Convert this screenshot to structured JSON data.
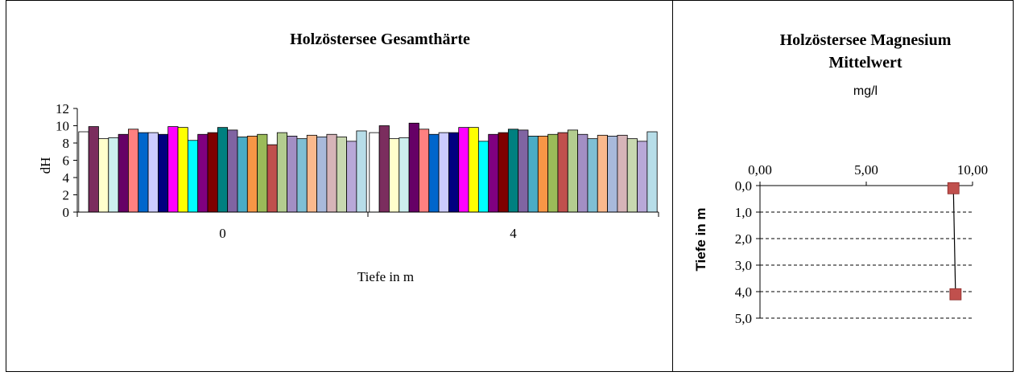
{
  "chart_data": [
    {
      "type": "bar",
      "title": "Holzöstersee Gesamthärte",
      "xlabel": "Tiefe in m",
      "ylabel": "dH",
      "ylim": [
        0,
        12
      ],
      "yticks": [
        "0",
        "2",
        "4",
        "6",
        "8",
        "10",
        "12"
      ],
      "categories": [
        "0",
        "4"
      ],
      "grid": false,
      "legend": "none",
      "series_colors": [
        "#ffffff",
        "#7b2d5e",
        "#ffffcc",
        "#cceeee",
        "#660066",
        "#ff8080",
        "#0066cc",
        "#ccccff",
        "#000080",
        "#ff00ff",
        "#ffff00",
        "#00ffff",
        "#800080",
        "#800000",
        "#008080",
        "#8064a2",
        "#4bacc6",
        "#f79646",
        "#9bbb59",
        "#c0504d",
        "#b3cc8f",
        "#a38fc4",
        "#7fbfd4",
        "#fab98d",
        "#a8b9db",
        "#d6b4b8",
        "#c8d8b0",
        "#b8a8d8",
        "#b7dde8"
      ],
      "series": [
        {
          "values": [
            9.3,
            9.2
          ]
        },
        {
          "values": [
            9.9,
            10.0
          ]
        },
        {
          "values": [
            8.5,
            8.5
          ]
        },
        {
          "values": [
            8.6,
            8.6
          ]
        },
        {
          "values": [
            9.0,
            10.3
          ]
        },
        {
          "values": [
            9.6,
            9.6
          ]
        },
        {
          "values": [
            9.2,
            9.0
          ]
        },
        {
          "values": [
            9.2,
            9.2
          ]
        },
        {
          "values": [
            9.0,
            9.2
          ]
        },
        {
          "values": [
            9.9,
            9.8
          ]
        },
        {
          "values": [
            9.8,
            9.8
          ]
        },
        {
          "values": [
            8.3,
            8.2
          ]
        },
        {
          "values": [
            9.0,
            9.0
          ]
        },
        {
          "values": [
            9.2,
            9.2
          ]
        },
        {
          "values": [
            9.8,
            9.6
          ]
        },
        {
          "values": [
            9.5,
            9.5
          ]
        },
        {
          "values": [
            8.7,
            8.8
          ]
        },
        {
          "values": [
            8.8,
            8.8
          ]
        },
        {
          "values": [
            9.0,
            9.0
          ]
        },
        {
          "values": [
            7.8,
            9.2
          ]
        },
        {
          "values": [
            9.2,
            9.5
          ]
        },
        {
          "values": [
            8.8,
            9.0
          ]
        },
        {
          "values": [
            8.5,
            8.5
          ]
        },
        {
          "values": [
            8.9,
            8.9
          ]
        },
        {
          "values": [
            8.7,
            8.8
          ]
        },
        {
          "values": [
            9.0,
            8.9
          ]
        },
        {
          "values": [
            8.7,
            8.5
          ]
        },
        {
          "values": [
            8.2,
            8.2
          ]
        },
        {
          "values": [
            9.4,
            9.3
          ]
        }
      ]
    },
    {
      "type": "line",
      "title": "Holzöstersee Magnesium",
      "title2": "Mittelwert",
      "subtitle": "mg/l",
      "ylabel": "Tiefe in m",
      "xlim": [
        0,
        10
      ],
      "xticks": [
        "0,00",
        "5,00",
        "10,00"
      ],
      "ylim": [
        0,
        5
      ],
      "yticks": [
        "0,0",
        "1,0",
        "2,0",
        "3,0",
        "4,0",
        "5,0"
      ],
      "y_reversed": true,
      "grid": "horizontal dashed",
      "marker_color": "#c0504d",
      "points": [
        {
          "x": 9.1,
          "y": 0.1
        },
        {
          "x": 9.2,
          "y": 4.1
        }
      ]
    }
  ]
}
